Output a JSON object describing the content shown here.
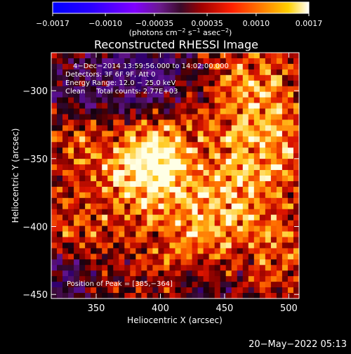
{
  "chart_data": {
    "type": "heatmap",
    "title": "Reconstructed RHESSI Image",
    "xlabel": "Heliocentric X (arcsec)",
    "ylabel": "Heliocentric Y (arcsec)",
    "xlim": [
      315,
      508
    ],
    "ylim": [
      -453,
      -272
    ],
    "x_ticks": [
      350,
      400,
      450,
      500
    ],
    "y_ticks": [
      -300,
      -350,
      -400,
      -450
    ],
    "x_tick_labels": [
      "350",
      "400",
      "450",
      "500"
    ],
    "y_tick_labels": [
      "−300",
      "−350",
      "−400",
      "−450"
    ],
    "colorbar": {
      "min": -0.0017,
      "max": 0.0017,
      "ticks": [
        -0.0017,
        -0.001,
        -0.00035,
        0.00035,
        0.001,
        0.0017
      ],
      "tick_labels": [
        "−0.0017",
        "−0.0010",
        "−0.00035",
        "0.00035",
        "0.0010",
        "0.0017"
      ],
      "unit_text": "(photons cm",
      "unit_sup1": "−2",
      "unit_mid": " s",
      "unit_sup2": "−1",
      "unit_mid2": " asec",
      "unit_sup3": "−2",
      "unit_end": ")"
    },
    "annotations": [
      "4−Dec−2014 13:59:56.000 to 14:02:00.000",
      "Detectors: 3F 6F 9F, Att 0",
      "Energy Range: 12.0 − 25.0 keV",
      "Clean     Total counts: 2.77E+03"
    ],
    "peak_label": "Position of Peak = [385,−364]",
    "peak": [
      385,
      -364
    ],
    "hotspots": [
      {
        "x": 385,
        "y": -362,
        "amp": 1.0,
        "sigma": 22
      },
      {
        "x": 398,
        "y": -340,
        "amp": 0.75,
        "sigma": 18
      },
      {
        "x": 455,
        "y": -375,
        "amp": 0.85,
        "sigma": 28
      },
      {
        "x": 470,
        "y": -300,
        "amp": 0.7,
        "sigma": 25
      },
      {
        "x": 490,
        "y": -340,
        "amp": 0.55,
        "sigma": 20
      },
      {
        "x": 335,
        "y": -400,
        "amp": 0.5,
        "sigma": 18
      },
      {
        "x": 420,
        "y": -415,
        "amp": 0.6,
        "sigma": 22
      },
      {
        "x": 340,
        "y": -340,
        "amp": 0.45,
        "sigma": 18
      },
      {
        "x": 495,
        "y": -420,
        "amp": 0.45,
        "sigma": 18
      }
    ],
    "cold_regions": [
      {
        "x": 385,
        "y": -285,
        "amp": 0.9,
        "sigma": 28
      },
      {
        "x": 325,
        "y": -440,
        "amp": 0.6,
        "sigma": 18
      },
      {
        "x": 430,
        "y": -445,
        "amp": 0.5,
        "sigma": 18
      },
      {
        "x": 330,
        "y": -300,
        "amp": 0.4,
        "sigma": 18
      }
    ],
    "grid": false
  },
  "footer": {
    "timestamp": "20−May−2022 05:13"
  }
}
